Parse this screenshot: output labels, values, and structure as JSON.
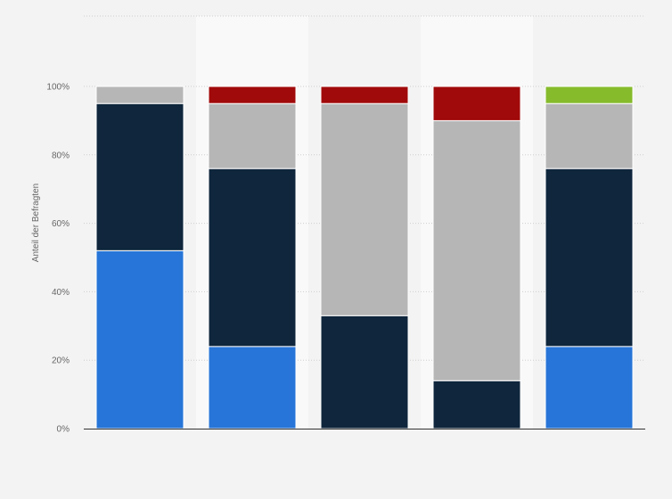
{
  "chart_data": {
    "type": "bar",
    "stacked": true,
    "title": "",
    "xlabel": "",
    "ylabel": "Anteil der Befragten",
    "ylim": [
      0,
      100
    ],
    "y_ticks": [
      "0%",
      "20%",
      "40%",
      "60%",
      "80%",
      "100%"
    ],
    "categories": [
      "",
      "",
      "",
      "",
      ""
    ],
    "grid": true,
    "legend": "none",
    "series": [
      {
        "color": "#2775d8",
        "values": [
          52,
          24,
          0,
          0,
          24
        ]
      },
      {
        "color": "#0f263c",
        "values": [
          43,
          52,
          33,
          14,
          52
        ]
      },
      {
        "color": "#b6b6b6",
        "values": [
          5,
          19,
          62,
          76,
          19
        ]
      },
      {
        "color": "#a10a0a",
        "values": [
          0,
          5,
          5,
          10,
          0
        ]
      },
      {
        "color": "#86bb2b",
        "values": [
          0,
          0,
          0,
          0,
          5
        ]
      }
    ]
  }
}
